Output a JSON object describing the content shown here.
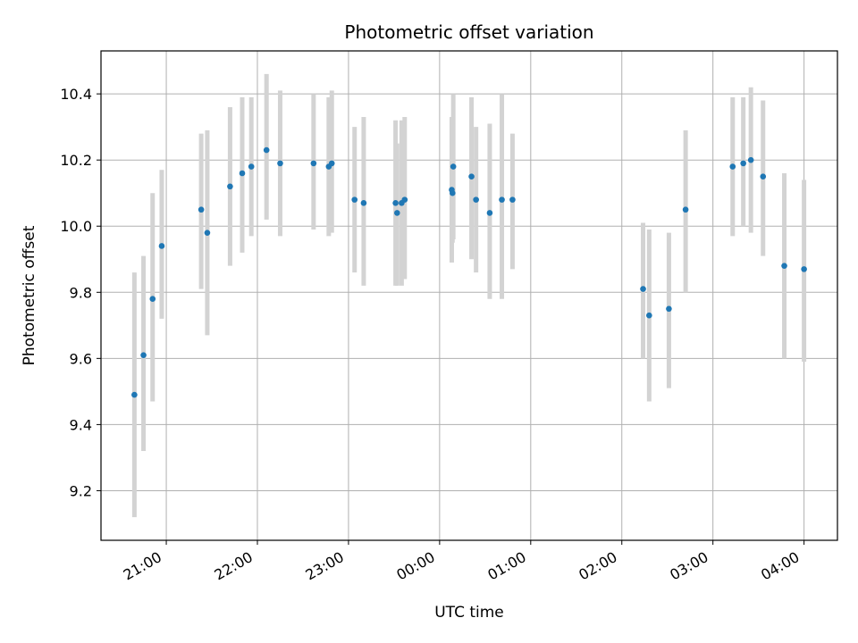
{
  "chart_data": {
    "type": "scatter",
    "title": "Photometric offset variation",
    "xlabel": "UTC time",
    "ylabel": "Photometric offset",
    "xlim": [
      "2023-01-01T20:17:00",
      "2023-01-02T04:22:00"
    ],
    "ylim": [
      9.05,
      10.53
    ],
    "x_ticks": [
      {
        "t": "2023-01-01T21:00:00",
        "label": "21:00"
      },
      {
        "t": "2023-01-01T22:00:00",
        "label": "22:00"
      },
      {
        "t": "2023-01-01T23:00:00",
        "label": "23:00"
      },
      {
        "t": "2023-01-02T00:00:00",
        "label": "00:00"
      },
      {
        "t": "2023-01-02T01:00:00",
        "label": "01:00"
      },
      {
        "t": "2023-01-02T02:00:00",
        "label": "02:00"
      },
      {
        "t": "2023-01-02T03:00:00",
        "label": "03:00"
      },
      {
        "t": "2023-01-02T04:00:00",
        "label": "04:00"
      }
    ],
    "y_ticks": [
      {
        "v": 9.2,
        "label": "9.2"
      },
      {
        "v": 9.4,
        "label": "9.4"
      },
      {
        "v": 9.6,
        "label": "9.6"
      },
      {
        "v": 9.8,
        "label": "9.8"
      },
      {
        "v": 10.0,
        "label": "10.0"
      },
      {
        "v": 10.2,
        "label": "10.2"
      },
      {
        "v": 10.4,
        "label": "10.4"
      }
    ],
    "grid": true,
    "colors": {
      "points": "#1f77b4",
      "errorbars": "#d3d3d3",
      "grid": "#b0b0b0"
    },
    "points": [
      {
        "t": "2023-01-01T20:39:00",
        "y": 9.49,
        "lo": 9.12,
        "hi": 9.86
      },
      {
        "t": "2023-01-01T20:45:00",
        "y": 9.61,
        "lo": 9.32,
        "hi": 9.91
      },
      {
        "t": "2023-01-01T20:51:00",
        "y": 9.78,
        "lo": 9.47,
        "hi": 10.1
      },
      {
        "t": "2023-01-01T20:57:00",
        "y": 9.94,
        "lo": 9.72,
        "hi": 10.17
      },
      {
        "t": "2023-01-01T21:23:00",
        "y": 10.05,
        "lo": 9.81,
        "hi": 10.28
      },
      {
        "t": "2023-01-01T21:27:00",
        "y": 9.98,
        "lo": 9.67,
        "hi": 10.29
      },
      {
        "t": "2023-01-01T21:42:00",
        "y": 10.12,
        "lo": 9.88,
        "hi": 10.36
      },
      {
        "t": "2023-01-01T21:50:00",
        "y": 10.16,
        "lo": 9.92,
        "hi": 10.39
      },
      {
        "t": "2023-01-01T21:56:00",
        "y": 10.18,
        "lo": 9.97,
        "hi": 10.39
      },
      {
        "t": "2023-01-01T22:06:00",
        "y": 10.23,
        "lo": 10.02,
        "hi": 10.46
      },
      {
        "t": "2023-01-01T22:15:00",
        "y": 10.19,
        "lo": 9.97,
        "hi": 10.41
      },
      {
        "t": "2023-01-01T22:37:00",
        "y": 10.19,
        "lo": 9.99,
        "hi": 10.4
      },
      {
        "t": "2023-01-01T22:47:00",
        "y": 10.18,
        "lo": 9.97,
        "hi": 10.39
      },
      {
        "t": "2023-01-01T22:49:00",
        "y": 10.19,
        "lo": 9.98,
        "hi": 10.41
      },
      {
        "t": "2023-01-01T23:04:00",
        "y": 10.08,
        "lo": 9.86,
        "hi": 10.3
      },
      {
        "t": "2023-01-01T23:10:00",
        "y": 10.07,
        "lo": 9.82,
        "hi": 10.33
      },
      {
        "t": "2023-01-01T23:31:00",
        "y": 10.07,
        "lo": 9.82,
        "hi": 10.32
      },
      {
        "t": "2023-01-01T23:32:00",
        "y": 10.04,
        "lo": 9.82,
        "hi": 10.25
      },
      {
        "t": "2023-01-01T23:35:00",
        "y": 10.07,
        "lo": 9.82,
        "hi": 10.32
      },
      {
        "t": "2023-01-01T23:37:00",
        "y": 10.08,
        "lo": 9.84,
        "hi": 10.33
      },
      {
        "t": "2023-01-02T00:08:00",
        "y": 10.11,
        "lo": 9.89,
        "hi": 10.33
      },
      {
        "t": "2023-01-02T00:08:30",
        "y": 10.1,
        "lo": 9.95,
        "hi": 10.26
      },
      {
        "t": "2023-01-02T00:09:00",
        "y": 10.18,
        "lo": 9.96,
        "hi": 10.4
      },
      {
        "t": "2023-01-02T00:21:00",
        "y": 10.15,
        "lo": 9.9,
        "hi": 10.39
      },
      {
        "t": "2023-01-02T00:24:00",
        "y": 10.08,
        "lo": 9.86,
        "hi": 10.3
      },
      {
        "t": "2023-01-02T00:33:00",
        "y": 10.04,
        "lo": 9.78,
        "hi": 10.31
      },
      {
        "t": "2023-01-02T00:41:00",
        "y": 10.08,
        "lo": 9.78,
        "hi": 10.4
      },
      {
        "t": "2023-01-02T00:48:00",
        "y": 10.08,
        "lo": 9.87,
        "hi": 10.28
      },
      {
        "t": "2023-01-02T02:14:00",
        "y": 9.81,
        "lo": 9.6,
        "hi": 10.01
      },
      {
        "t": "2023-01-02T02:18:00",
        "y": 9.73,
        "lo": 9.47,
        "hi": 9.99
      },
      {
        "t": "2023-01-02T02:31:00",
        "y": 9.75,
        "lo": 9.51,
        "hi": 9.98
      },
      {
        "t": "2023-01-02T02:42:00",
        "y": 10.05,
        "lo": 9.8,
        "hi": 10.29
      },
      {
        "t": "2023-01-02T03:13:00",
        "y": 10.18,
        "lo": 9.97,
        "hi": 10.39
      },
      {
        "t": "2023-01-02T03:20:00",
        "y": 10.19,
        "lo": 10.0,
        "hi": 10.39
      },
      {
        "t": "2023-01-02T03:25:00",
        "y": 10.2,
        "lo": 9.98,
        "hi": 10.42
      },
      {
        "t": "2023-01-02T03:33:00",
        "y": 10.15,
        "lo": 9.91,
        "hi": 10.38
      },
      {
        "t": "2023-01-02T03:47:00",
        "y": 9.88,
        "lo": 9.6,
        "hi": 10.16
      },
      {
        "t": "2023-01-02T04:00:00",
        "y": 9.87,
        "lo": 9.59,
        "hi": 10.14
      }
    ]
  }
}
